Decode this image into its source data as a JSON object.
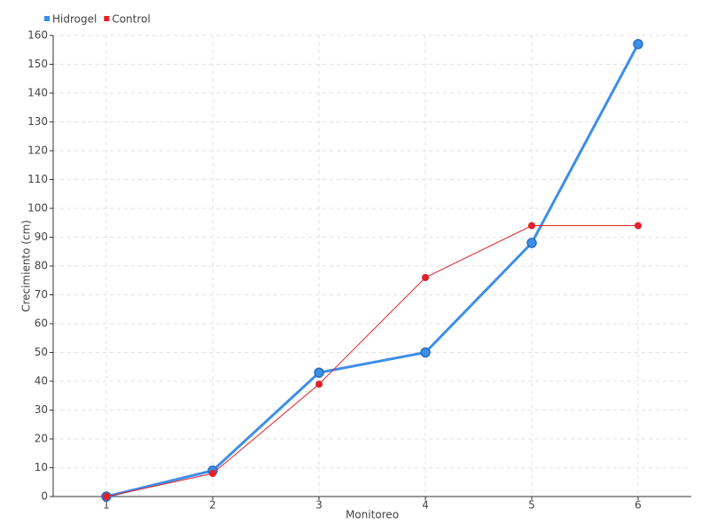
{
  "chart_data": {
    "type": "line",
    "x_label": "Monitoreo",
    "y_label": "Crecimiento (cm)",
    "x": [
      1,
      2,
      3,
      4,
      5,
      6
    ],
    "xlim": [
      0.5,
      6.5
    ],
    "xticks": [
      1,
      2,
      3,
      4,
      5,
      6
    ],
    "ylim": [
      0,
      160
    ],
    "yticks": [
      0,
      10,
      20,
      30,
      40,
      50,
      60,
      70,
      80,
      90,
      100,
      110,
      120,
      130,
      140,
      150,
      160
    ],
    "grid": true,
    "legend": "top-left",
    "series": [
      {
        "name": "Hidrogel",
        "color": "#3d8fe8",
        "values": [
          0,
          9,
          43,
          50,
          88,
          157
        ]
      },
      {
        "name": "Control",
        "color": "#e3202a",
        "values": [
          0,
          8,
          39,
          76,
          94,
          94
        ]
      }
    ]
  }
}
